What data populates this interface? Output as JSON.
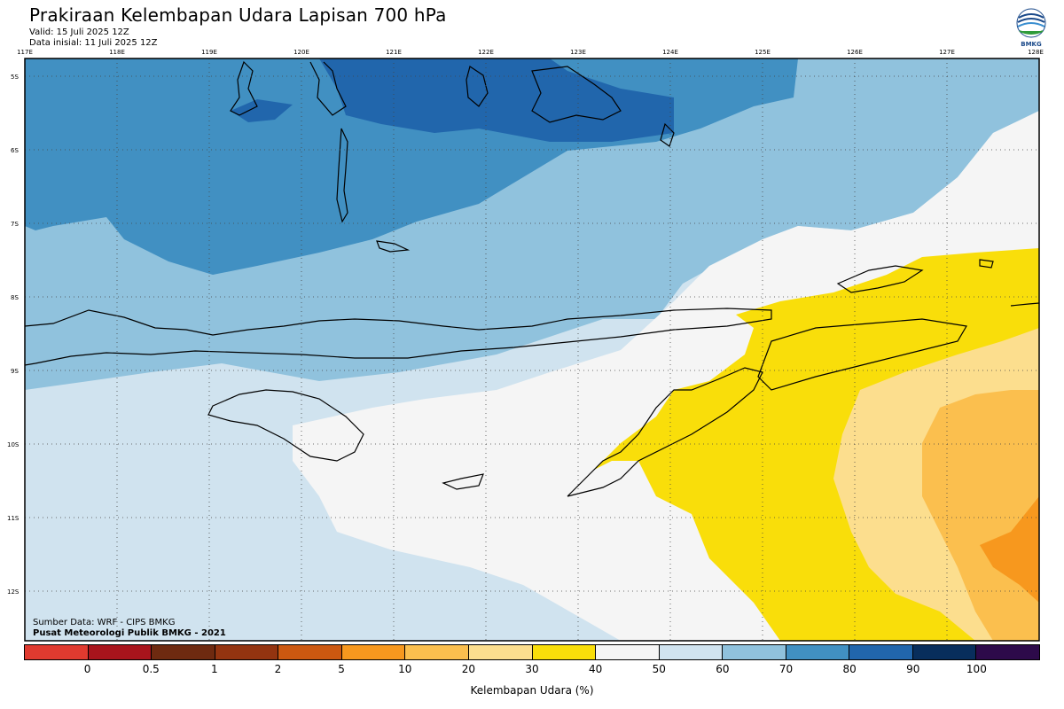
{
  "header": {
    "title": "Prakiraan Kelembapan Udara Lapisan 700 hPa",
    "valid": "Valid: 15 Juli 2025 12Z",
    "initial": "Data inisial: 11 Juli 2025 12Z"
  },
  "logo": {
    "label": "BMKG",
    "icon": "bmkg-logo-icon"
  },
  "map": {
    "longitude_labels": [
      "117E",
      "118E",
      "119E",
      "120E",
      "121E",
      "122E",
      "123E",
      "124E",
      "125E",
      "126E",
      "127E",
      "128E"
    ],
    "latitude_labels": [
      "5S",
      "6S",
      "7S",
      "8S",
      "9S",
      "10S",
      "11S",
      "12S"
    ],
    "grid": "dotted"
  },
  "credits": {
    "source": "Sumber Data: WRF - CIPS BMKG",
    "center": "Pusat Meteorologi Publik BMKG - 2021"
  },
  "legend": {
    "colors": [
      "#e03a2f",
      "#a8141c",
      "#6e2a10",
      "#933410",
      "#cc5810",
      "#f7981e",
      "#fbbf4e",
      "#fcde8e",
      "#f9de0a",
      "#f5f5f5",
      "#d0e3ef",
      "#90c2dd",
      "#4190c2",
      "#2166ac",
      "#082e5c",
      "#2d0a4a"
    ],
    "ticks": [
      "0",
      "0.5",
      "1",
      "2",
      "5",
      "10",
      "20",
      "30",
      "40",
      "50",
      "60",
      "70",
      "80",
      "90",
      "100"
    ],
    "caption": "Kelembapan Udara (%)"
  }
}
